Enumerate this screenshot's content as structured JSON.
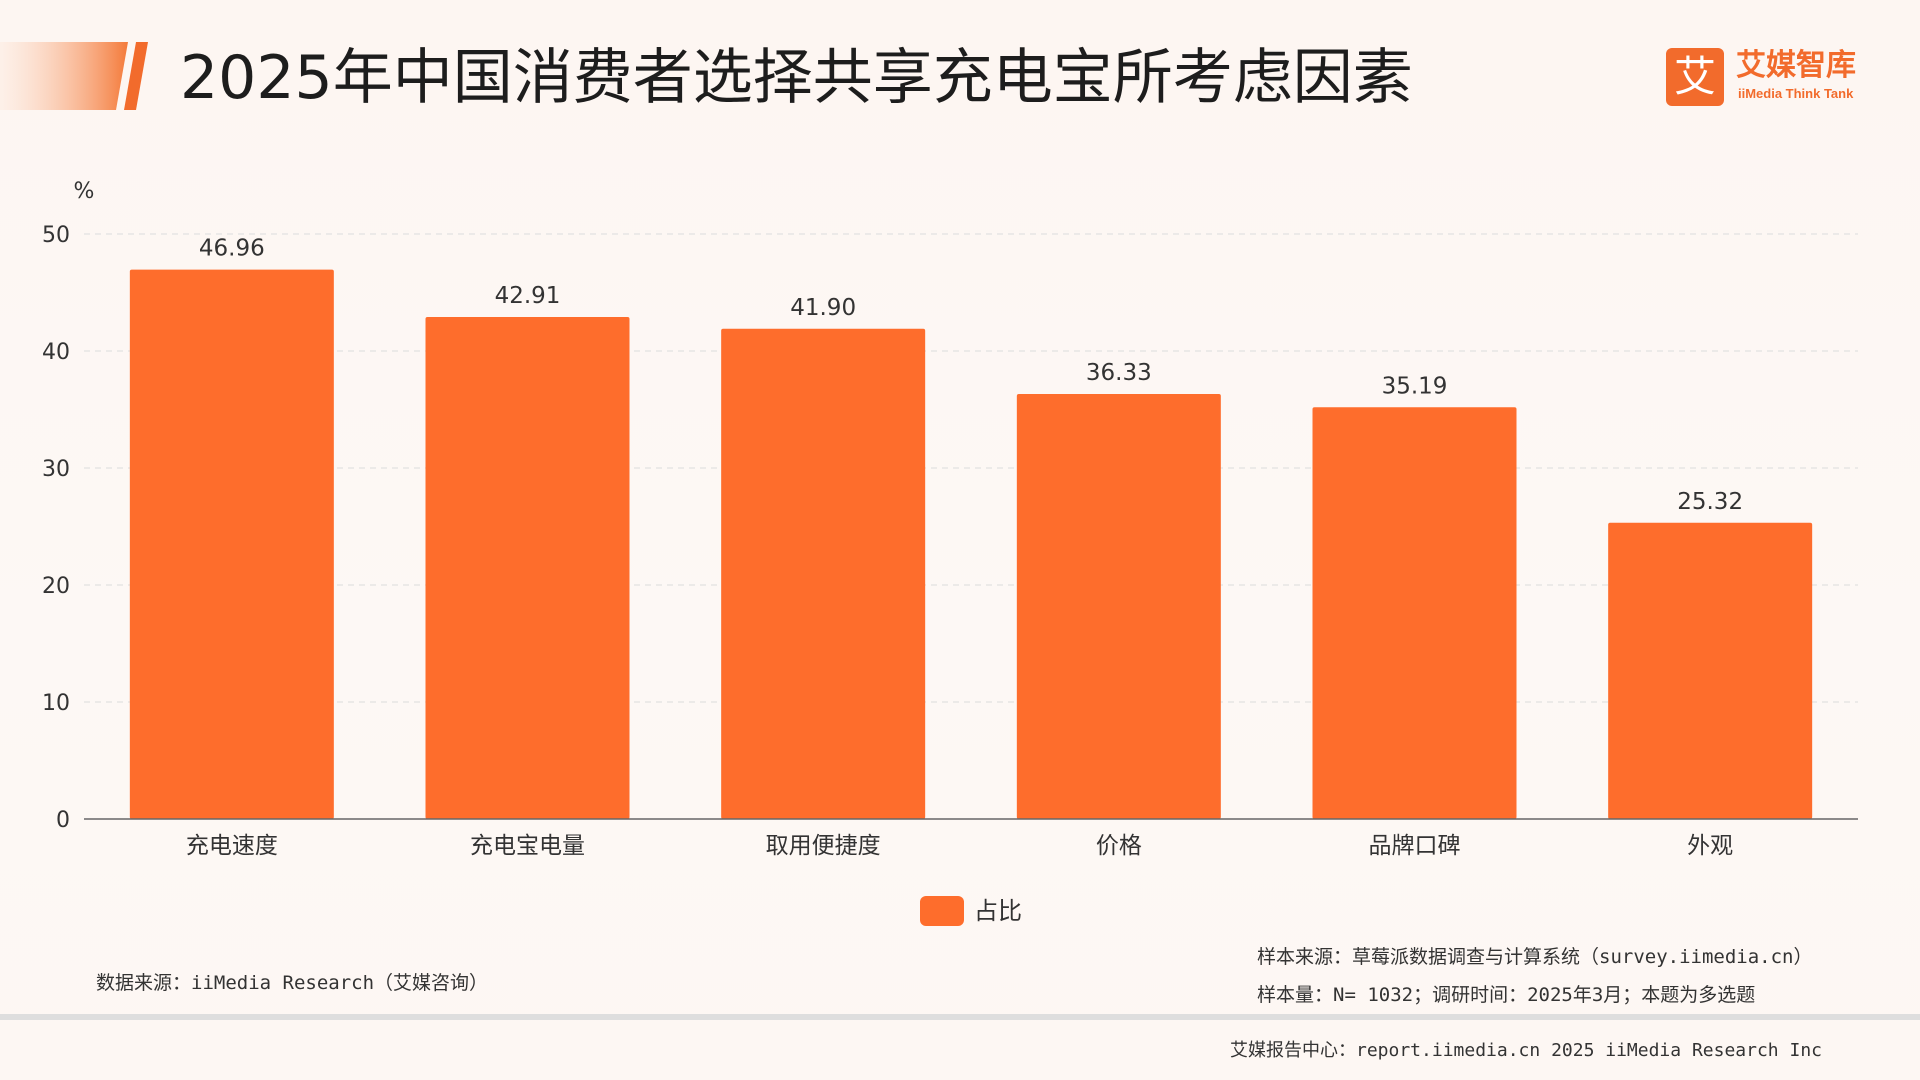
{
  "page": {
    "title": "2025年中国消费者选择共享充电宝所考虑因素",
    "logo_mark": "艾",
    "logo_cn": "艾媒智库",
    "logo_en": "iiMedia Think Tank",
    "accent_color": "#f26b2c"
  },
  "chart_data": {
    "type": "bar",
    "title": "2025年中国消费者选择共享充电宝所考虑因素",
    "xlabel": "",
    "ylabel": "%",
    "categories": [
      "充电速度",
      "充电宝电量",
      "取用便捷度",
      "价格",
      "品牌口碑",
      "外观"
    ],
    "series": [
      {
        "name": "占比",
        "values": [
          46.96,
          42.91,
          41.9,
          36.33,
          35.19,
          25.32
        ],
        "labels": [
          "46.96",
          "42.91",
          "41.90",
          "36.33",
          "35.19",
          "25.32"
        ],
        "color": "#fe6d2c"
      }
    ],
    "ylim": [
      0,
      50
    ],
    "yticks": [
      "0",
      "10",
      "20",
      "30",
      "40",
      "50"
    ],
    "grid": true,
    "legend": "bottom-center"
  },
  "legend": {
    "label": "占比"
  },
  "sources": {
    "data_source": "数据来源：iiMedia Research（艾媒咨询）",
    "sample_source": "样本来源：草莓派数据调查与计算系统（survey.iimedia.cn）",
    "sample_size": "样本量：N= 1032；调研时间：2025年3月；本题为多选题"
  },
  "footer": {
    "text": "艾媒报告中心：report.iimedia.cn   2025 iiMedia Research Inc"
  }
}
